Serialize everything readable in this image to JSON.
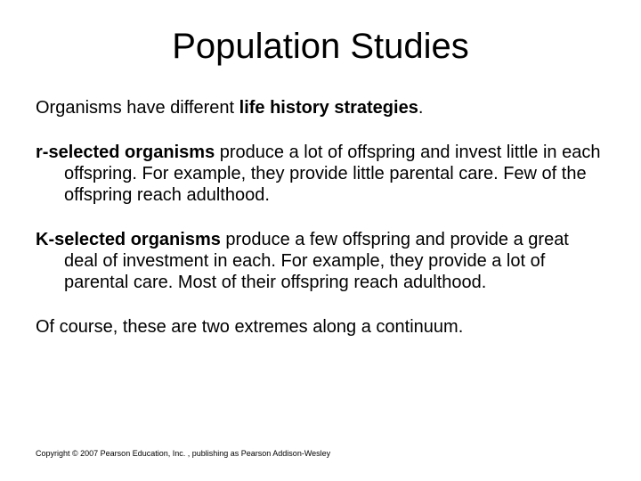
{
  "title": "Population Studies",
  "intro_pre": "Organisms have different ",
  "intro_bold": "life history strategies",
  "intro_post": ".",
  "r_bold": "r-selected organisms",
  "r_rest_line1": " produce a lot of offspring and invest little",
  "r_line2": "in each offspring. For example, they provide little parental care. Few of the offspring reach adulthood.",
  "k_bold": "K-selected organisms",
  "k_rest_line1": " produce a few offspring and provide a",
  "k_line2": "great deal of investment in each. For example, they provide a lot of parental care. Most of their offspring reach adulthood.",
  "closing": "Of course, these are two extremes along a continuum.",
  "copyright": "Copyright © 2007 Pearson Education, Inc. , publishing as Pearson Addison-Wesley",
  "colors": {
    "bg": "#ffffff",
    "text": "#000000"
  },
  "fonts": {
    "title_size": 40,
    "body_size": 20,
    "copyright_size": 9
  }
}
